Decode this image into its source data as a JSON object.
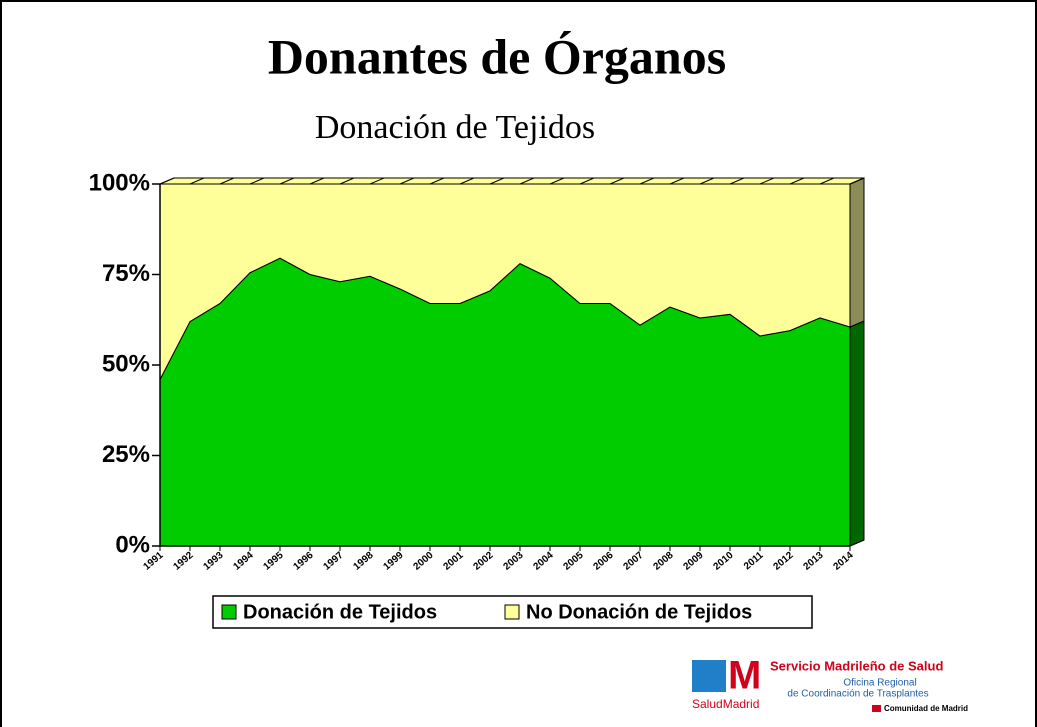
{
  "chart_data": {
    "type": "area",
    "stacked": true,
    "title": "Donantes de Órganos",
    "subtitle": "Donación de Tejidos",
    "categories": [
      "1991",
      "1992",
      "1993",
      "1994",
      "1995",
      "1996",
      "1997",
      "1998",
      "1999",
      "2000",
      "2001",
      "2002",
      "2003",
      "2004",
      "2005",
      "2006",
      "2007",
      "2008",
      "2009",
      "2010",
      "2011",
      "2012",
      "2013",
      "2014"
    ],
    "series": [
      {
        "name": "Donación de Tejidos",
        "color": "#00cc00",
        "side_color": "#006600",
        "values": [
          46,
          62,
          67,
          75.5,
          79.5,
          75,
          73,
          74.5,
          71,
          67,
          67,
          70.5,
          78,
          74,
          67,
          67,
          61,
          66,
          63,
          64,
          58,
          59.5,
          63,
          60.5
        ]
      },
      {
        "name": "No Donación de Tejidos",
        "color": "#ffff99",
        "side_color": "#8c8c57",
        "values": [
          54,
          38,
          33,
          24.5,
          20.5,
          25,
          27,
          25.5,
          29,
          33,
          33,
          29.5,
          22,
          26,
          33,
          33,
          39,
          34,
          37,
          36,
          42,
          40.5,
          37,
          39.5
        ]
      }
    ],
    "ylim": [
      0,
      100
    ],
    "yticks": [
      {
        "value": 0,
        "label": "0%"
      },
      {
        "value": 25,
        "label": "25%"
      },
      {
        "value": 50,
        "label": "50%"
      },
      {
        "value": 75,
        "label": "75%"
      },
      {
        "value": 100,
        "label": "100%"
      }
    ],
    "legend": "bottom"
  },
  "logo": {
    "name": "Servicio Madrileño de Salud",
    "office_1": "Oficina Regional",
    "office_2": "de Coordinación de Trasplantes",
    "community": "Comunidad de Madrid",
    "brand": "SaludMadrid"
  }
}
